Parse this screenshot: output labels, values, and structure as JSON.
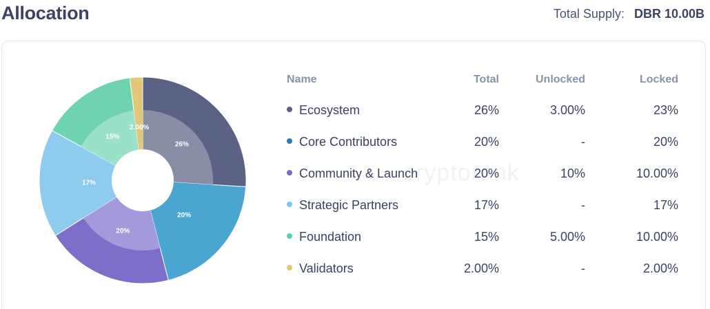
{
  "header": {
    "title": "Allocation",
    "supply_label": "Total Supply:",
    "supply_value": "DBR 10.00B"
  },
  "watermark": "cryptorank",
  "table": {
    "headers": {
      "name": "Name",
      "total": "Total",
      "unlocked": "Unlocked",
      "locked": "Locked"
    },
    "rows": [
      {
        "name": "Ecosystem",
        "color": "#5b6285",
        "total": "26%",
        "unlocked": "3.00%",
        "locked": "23%"
      },
      {
        "name": "Core Contributors",
        "color": "#1f7fbf",
        "total": "20%",
        "unlocked": "-",
        "locked": "20%"
      },
      {
        "name": "Community & Launch",
        "color": "#7b6cc9",
        "total": "20%",
        "unlocked": "10%",
        "locked": "10.00%"
      },
      {
        "name": "Strategic Partners",
        "color": "#7cc7ee",
        "total": "17%",
        "unlocked": "-",
        "locked": "17%"
      },
      {
        "name": "Foundation",
        "color": "#5ccfa7",
        "total": "15%",
        "unlocked": "5.00%",
        "locked": "10.00%"
      },
      {
        "name": "Validators",
        "color": "#e3c778",
        "total": "2.00%",
        "unlocked": "-",
        "locked": "2.00%"
      }
    ]
  },
  "chart_data": {
    "type": "pie",
    "categories": [
      "Ecosystem",
      "Core Contributors",
      "Community & Launch",
      "Strategic Partners",
      "Foundation",
      "Validators"
    ],
    "values": [
      26,
      20,
      20,
      17,
      15,
      2
    ],
    "labels": [
      "26%",
      "20%",
      "20%",
      "17%",
      "15%",
      "2.00%"
    ],
    "colors": [
      "#5b6285",
      "#4aa5d0",
      "#7d6ec9",
      "#8ecbef",
      "#6fd2b1",
      "#e3c778"
    ],
    "inner_colors": [
      "#8a8ea5",
      "#4aa5d0",
      "#a39adb",
      "#8ecbef",
      "#9be0c8",
      "#e3c778"
    ]
  }
}
